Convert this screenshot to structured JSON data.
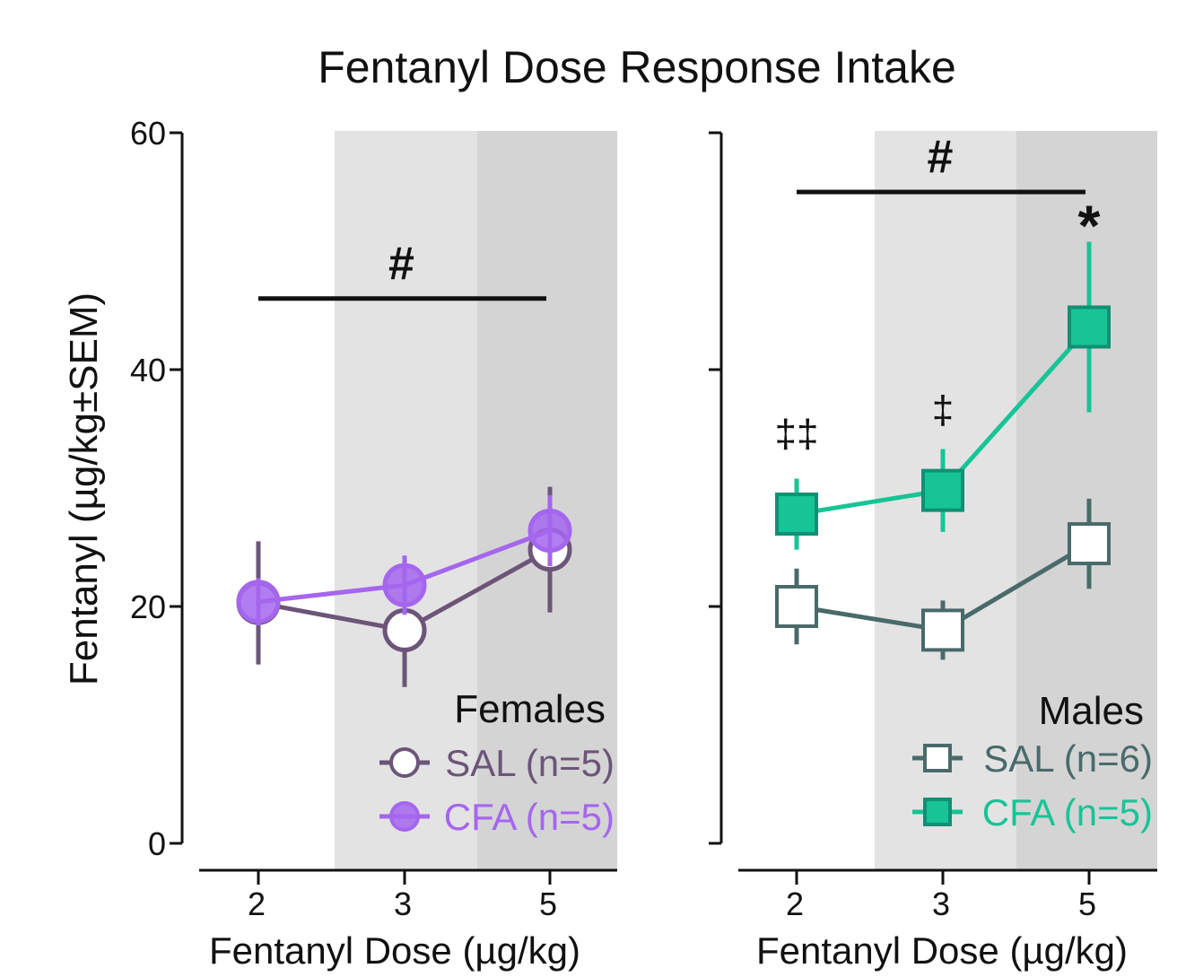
{
  "chart_data": {
    "title": "Fentanyl Dose Response Intake",
    "ylabel": "Fentanyl  (µg/kg±SEM)",
    "ylim": [
      0,
      60
    ],
    "yticks": [
      "0",
      "20",
      "40",
      "60"
    ],
    "panels": [
      {
        "type": "line",
        "name": "Females",
        "legend_title": "Females",
        "xlabel": "Fentanyl Dose (µg/kg)",
        "categories": [
          "2",
          "3",
          "5"
        ],
        "shaded_regions": [
          {
            "from": "3",
            "to": "3",
            "color": "#e3e3e3"
          },
          {
            "from": "5",
            "to": "5",
            "color": "#d4d4d4"
          }
        ],
        "series": [
          {
            "name": "SAL (n=5)",
            "marker": "circle-open",
            "color": "#6c5578",
            "values": [
              20.3,
              18.0,
              24.8
            ],
            "sem": [
              5.2,
              4.8,
              5.3
            ]
          },
          {
            "name": "CFA (n=5)",
            "marker": "circle-filled",
            "color": "#a566ee",
            "values": [
              20.4,
              21.8,
              26.4
            ],
            "sem": [
              2.0,
              2.5,
              3.0
            ]
          }
        ],
        "significance": {
          "label": "#",
          "from": "2",
          "to": "5",
          "y": 46
        }
      },
      {
        "type": "line",
        "name": "Males",
        "legend_title": "Males",
        "xlabel": "Fentanyl Dose (µg/kg)",
        "categories": [
          "2",
          "3",
          "5"
        ],
        "shaded_regions": [
          {
            "from": "3",
            "to": "3",
            "color": "#e3e3e3"
          },
          {
            "from": "5",
            "to": "5",
            "color": "#d4d4d4"
          }
        ],
        "series": [
          {
            "name": "SAL (n=6)",
            "marker": "square-open",
            "color": "#4a6a6a",
            "values": [
              20.0,
              18.0,
              25.3
            ],
            "sem": [
              3.2,
              2.5,
              3.8
            ]
          },
          {
            "name": "CFA (n=5)",
            "marker": "square-filled",
            "color": "#17c496",
            "values": [
              27.8,
              29.8,
              43.6
            ],
            "sem": [
              3.0,
              3.5,
              7.2
            ]
          }
        ],
        "significance": {
          "label": "#",
          "from": "2",
          "to": "5",
          "y": 55
        },
        "annotations": [
          {
            "category": "2",
            "label": "‡‡",
            "y": 33.5
          },
          {
            "category": "3",
            "label": "‡",
            "y": 35.5
          },
          {
            "category": "5",
            "label": "*",
            "y": 52
          }
        ]
      }
    ]
  }
}
